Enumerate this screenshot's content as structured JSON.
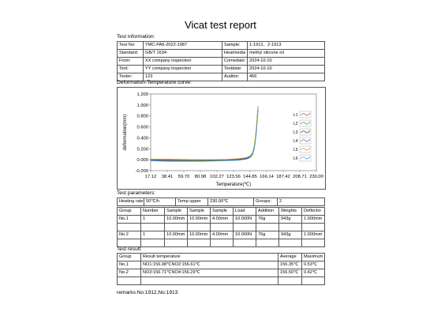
{
  "report": {
    "title": "Vicat test report",
    "remarks": "remarks:No:1912,No:1913"
  },
  "info": {
    "heading": "Test information:",
    "rows": [
      [
        "Test No:",
        "YMC-PA6-2022-1987",
        "Sample:",
        "1-1912、2-1913"
      ],
      [
        "Standard:",
        "GB/T 1634",
        "Heatmedia",
        "methyl silicone oil"
      ],
      [
        "From:",
        "XX company inspection",
        "Comedate:",
        "2024-10-10"
      ],
      [
        "Test:",
        "YY company inspection",
        "Testdate:",
        "2024-10-10"
      ],
      [
        "Tester:",
        "123",
        "Auditor:",
        "456"
      ]
    ]
  },
  "curve": {
    "heading": "Deformation-Temperature curve:"
  },
  "chart_data": {
    "type": "line",
    "xlabel": "Temperature(℃)",
    "ylabel": "deformation(mm)",
    "xlim": [
      17.12,
      230.0
    ],
    "ylim": [
      -0.2,
      1.2
    ],
    "x_ticks": [
      "17.12",
      "38.41",
      "59.70",
      "80.98",
      "102.27",
      "123.56",
      "144.85",
      "166.14",
      "187.42",
      "208.71",
      "230.00"
    ],
    "y_ticks": [
      "1.200",
      "1.000",
      "0.800",
      "0.600",
      "0.400",
      "0.200",
      "0.000",
      "-0.200"
    ],
    "grid": false,
    "legend_position": "right",
    "series": [
      {
        "name": "L1",
        "color": "#c0504d",
        "points": [
          [
            17.12,
            0.01
          ],
          [
            40,
            0.0
          ],
          [
            80,
            -0.01
          ],
          [
            110,
            -0.01
          ],
          [
            130,
            0.0
          ],
          [
            140,
            0.02
          ],
          [
            145,
            0.05
          ],
          [
            148,
            0.1
          ],
          [
            150,
            0.2
          ],
          [
            151.5,
            0.35
          ],
          [
            153,
            0.55
          ],
          [
            154,
            0.75
          ],
          [
            155,
            0.98
          ]
        ]
      },
      {
        "name": "L2",
        "color": "#4f9a4f",
        "points": [
          [
            17.12,
            0.0
          ],
          [
            40,
            -0.01
          ],
          [
            80,
            -0.01
          ],
          [
            110,
            0.0
          ],
          [
            130,
            0.01
          ],
          [
            140,
            0.03
          ],
          [
            145,
            0.06
          ],
          [
            148,
            0.12
          ],
          [
            150,
            0.22
          ],
          [
            151.5,
            0.37
          ],
          [
            153,
            0.58
          ],
          [
            154,
            0.78
          ],
          [
            155,
            0.95
          ]
        ]
      },
      {
        "name": "L3",
        "color": "#404040",
        "points": [
          [
            17.12,
            -0.01
          ],
          [
            40,
            -0.02
          ],
          [
            80,
            -0.02
          ],
          [
            110,
            -0.01
          ],
          [
            130,
            0.0
          ],
          [
            140,
            0.02
          ],
          [
            145,
            0.05
          ],
          [
            148,
            0.1
          ],
          [
            150,
            0.2
          ],
          [
            151.5,
            0.34
          ],
          [
            153,
            0.52
          ],
          [
            154,
            0.72
          ],
          [
            155,
            0.9
          ]
        ]
      },
      {
        "name": "L4",
        "color": "#7e57c2",
        "points": [
          [
            17.12,
            0.0
          ],
          [
            40,
            0.0
          ],
          [
            80,
            0.0
          ],
          [
            110,
            0.0
          ],
          [
            130,
            0.01
          ],
          [
            140,
            0.03
          ],
          [
            145,
            0.06
          ],
          [
            148,
            0.11
          ],
          [
            150,
            0.21
          ],
          [
            151.5,
            0.36
          ],
          [
            153,
            0.56
          ],
          [
            154,
            0.76
          ],
          [
            155,
            0.93
          ]
        ]
      },
      {
        "name": "L5",
        "color": "#c9a227",
        "points": [
          [
            17.12,
            0.01
          ],
          [
            40,
            0.01
          ],
          [
            80,
            0.0
          ],
          [
            110,
            0.0
          ],
          [
            130,
            0.02
          ],
          [
            140,
            0.04
          ],
          [
            145,
            0.07
          ],
          [
            148,
            0.13
          ],
          [
            150,
            0.24
          ],
          [
            151.5,
            0.4
          ],
          [
            153,
            0.6
          ],
          [
            154,
            0.8
          ],
          [
            155,
            0.97
          ]
        ]
      },
      {
        "name": "L6",
        "color": "#3aa0d8",
        "points": [
          [
            17.12,
            -0.02
          ],
          [
            40,
            -0.03
          ],
          [
            80,
            -0.03
          ],
          [
            110,
            -0.02
          ],
          [
            130,
            -0.01
          ],
          [
            140,
            0.01
          ],
          [
            145,
            0.04
          ],
          [
            148,
            0.09
          ],
          [
            150,
            0.18
          ],
          [
            151.5,
            0.32
          ],
          [
            153,
            0.5
          ],
          [
            154,
            0.7
          ],
          [
            155,
            0.88
          ]
        ]
      }
    ]
  },
  "params": {
    "heading": "Test parameters:",
    "top": [
      "Heating rate:",
      "50℃/h",
      "Temp upper",
      "230.00℃",
      "Groups:",
      "2"
    ],
    "headers": [
      "Group",
      "Number",
      "Sample",
      "Sample",
      "Sample",
      "Load",
      "Addition",
      "Weights",
      "Deflectio"
    ],
    "rows": [
      [
        "No.1",
        "1",
        "10.00mm",
        "10.00mm",
        "4.00mm",
        "10.000N",
        "76g",
        "943g",
        "1.000mm"
      ],
      [
        "No.2",
        "1",
        "10.00mm",
        "10.00mm",
        "4.00mm",
        "10.000N",
        "76g",
        "943g",
        "1.000mm"
      ]
    ]
  },
  "result": {
    "heading": "Test result:",
    "headers": [
      "Group",
      "Result temperature",
      "Average",
      "Maximum"
    ],
    "rows": [
      [
        "No.1",
        "NO1:156.08℃NO2:156.61℃",
        "156.35℃",
        "0.53℃"
      ],
      [
        "No.2",
        "NO3:156.71℃NO4:156.29℃",
        "156.50℃",
        "0.42℃"
      ]
    ]
  }
}
